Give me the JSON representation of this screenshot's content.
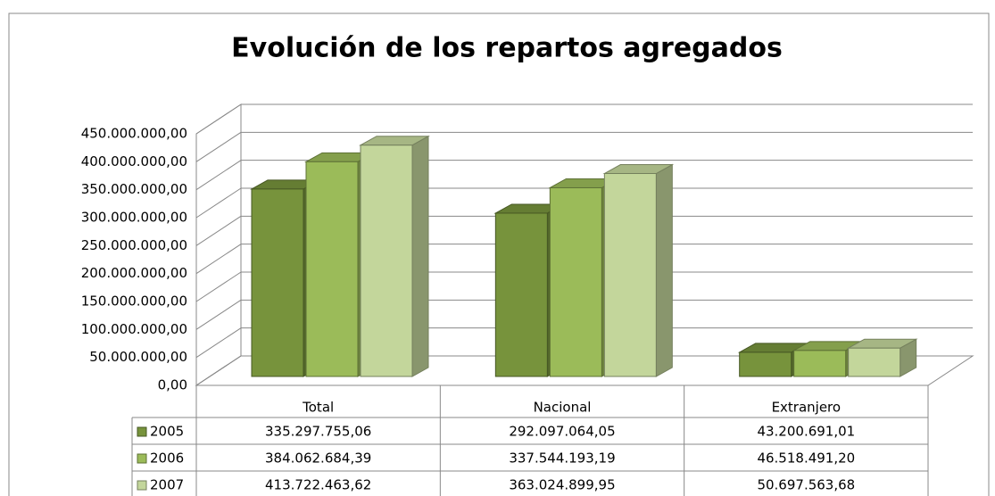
{
  "chart_data": {
    "type": "bar3d",
    "title": "Evolución de los repartos agregados",
    "categories": [
      "Total",
      "Nacional",
      "Extranjero"
    ],
    "series": [
      {
        "name": "2005",
        "color": "#77933c",
        "values": [
          335297755.06,
          292097064.05,
          43200691.01
        ],
        "value_labels": [
          "335.297.755,06",
          "292.097.064,05",
          "43.200.691,01"
        ]
      },
      {
        "name": "2006",
        "color": "#9bbb59",
        "values": [
          384062684.39,
          337544193.19,
          46518491.2
        ],
        "value_labels": [
          "384.062.684,39",
          "337.544.193,19",
          "46.518.491,20"
        ]
      },
      {
        "name": "2007",
        "color": "#c3d69b",
        "values": [
          413722463.62,
          363024899.95,
          50697563.68
        ],
        "value_labels": [
          "413.722.463,62",
          "363.024.899,95",
          "50.697.563,68"
        ]
      }
    ],
    "ylim": [
      0,
      450000000
    ],
    "yticks": [
      {
        "value": 0,
        "label": "0,00"
      },
      {
        "value": 50000000,
        "label": "50.000.000,00"
      },
      {
        "value": 100000000,
        "label": "100.000.000,00"
      },
      {
        "value": 150000000,
        "label": "150.000.000,00"
      },
      {
        "value": 200000000,
        "label": "200.000.000,00"
      },
      {
        "value": 250000000,
        "label": "250.000.000,00"
      },
      {
        "value": 300000000,
        "label": "300.000.000,00"
      },
      {
        "value": 350000000,
        "label": "350.000.000,00"
      },
      {
        "value": 400000000,
        "label": "400.000.000,00"
      },
      {
        "value": 450000000,
        "label": "450.000.000,00"
      }
    ],
    "grid": true
  }
}
